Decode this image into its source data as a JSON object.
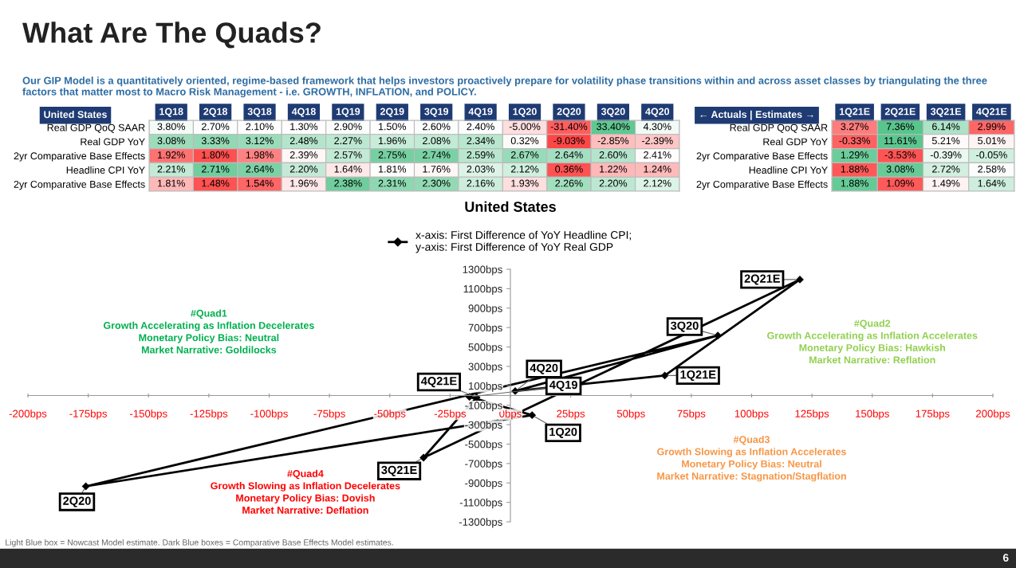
{
  "chart_data": [
    {
      "type": "heatmap",
      "title": "What Are The Quads?",
      "subtitle": "Our GIP Model is a quantitatively oriented, regime-based framework that helps investors proactively prepare for volatility phase transitions within and across asset classes by triangulating the three factors that matter most to Macro Risk Management - i.e. GROWTH, INFLATION, and POLICY.",
      "ylabel": "United States",
      "categories": [
        "1Q18",
        "2Q18",
        "3Q18",
        "4Q18",
        "1Q19",
        "2Q19",
        "3Q19",
        "4Q19",
        "1Q20",
        "2Q20",
        "3Q20",
        "4Q20"
      ],
      "y_categories": [
        "Real GDP QoQ SAAR",
        "Real GDP YoY",
        "2yr Comparative Base Effects",
        "Headline CPI YoY",
        "2yr Comparative Base Effects"
      ],
      "cells": [
        [
          3.8,
          2.7,
          2.1,
          1.3,
          2.9,
          1.5,
          2.6,
          2.4,
          -5.0,
          -31.4,
          33.4,
          4.3
        ],
        [
          3.08,
          3.33,
          3.12,
          2.48,
          2.27,
          1.96,
          2.08,
          2.34,
          0.32,
          -9.03,
          -2.85,
          -2.39
        ],
        [
          1.92,
          1.8,
          1.98,
          2.39,
          2.57,
          2.75,
          2.74,
          2.59,
          2.67,
          2.64,
          2.6,
          2.41
        ],
        [
          2.21,
          2.71,
          2.64,
          2.2,
          1.64,
          1.81,
          1.76,
          2.03,
          2.12,
          0.36,
          1.22,
          1.24
        ],
        [
          1.81,
          1.48,
          1.54,
          1.96,
          2.38,
          2.31,
          2.3,
          2.16,
          1.93,
          2.26,
          2.2,
          2.12
        ]
      ],
      "cell_labels": [
        [
          "3.80%",
          "2.70%",
          "2.10%",
          "1.30%",
          "2.90%",
          "1.50%",
          "2.60%",
          "2.40%",
          "-5.00%",
          "-31.40%",
          "33.40%",
          "4.30%"
        ],
        [
          "3.08%",
          "3.33%",
          "3.12%",
          "2.48%",
          "2.27%",
          "1.96%",
          "2.08%",
          "2.34%",
          "0.32%",
          "-9.03%",
          "-2.85%",
          "-2.39%"
        ],
        [
          "1.92%",
          "1.80%",
          "1.98%",
          "2.39%",
          "2.57%",
          "2.75%",
          "2.74%",
          "2.59%",
          "2.67%",
          "2.64%",
          "2.60%",
          "2.41%"
        ],
        [
          "2.21%",
          "2.71%",
          "2.64%",
          "2.20%",
          "1.64%",
          "1.81%",
          "1.76%",
          "2.03%",
          "2.12%",
          "0.36%",
          "1.22%",
          "1.24%"
        ],
        [
          "1.81%",
          "1.48%",
          "1.54%",
          "1.96%",
          "2.38%",
          "2.31%",
          "2.30%",
          "2.16%",
          "1.93%",
          "2.26%",
          "2.20%",
          "2.12%"
        ]
      ]
    },
    {
      "type": "heatmap",
      "ylabel": "← Actuals | Estimates →",
      "categories": [
        "1Q21E",
        "2Q21E",
        "3Q21E",
        "4Q21E"
      ],
      "y_categories": [
        "Real GDP QoQ SAAR",
        "Real GDP YoY",
        "2yr Comparative Base Effects",
        "Headline CPI YoY",
        "2yr Comparative Base Effects"
      ],
      "cells": [
        [
          3.27,
          7.36,
          6.14,
          2.99
        ],
        [
          -0.33,
          11.61,
          5.21,
          5.01
        ],
        [
          1.29,
          -3.53,
          -0.39,
          -0.05
        ],
        [
          1.88,
          3.08,
          2.72,
          2.58
        ],
        [
          1.88,
          1.09,
          1.49,
          1.64
        ]
      ],
      "cell_labels": [
        [
          "3.27%",
          "7.36%",
          "6.14%",
          "2.99%"
        ],
        [
          "-0.33%",
          "11.61%",
          "5.21%",
          "5.01%"
        ],
        [
          "1.29%",
          "-3.53%",
          "-0.39%",
          "-0.05%"
        ],
        [
          "1.88%",
          "3.08%",
          "2.72%",
          "2.58%"
        ],
        [
          "1.88%",
          "1.09%",
          "1.49%",
          "1.64%"
        ]
      ]
    },
    {
      "type": "line",
      "title": "United States",
      "marker": "diamond",
      "legend": "top",
      "grid": false,
      "xlim": [
        -200,
        200
      ],
      "ylim": [
        -1300,
        1300
      ],
      "xticks": [
        {
          "value": -200,
          "label": "-200bps"
        },
        {
          "value": -175,
          "label": "-175bps"
        },
        {
          "value": -150,
          "label": "-150bps"
        },
        {
          "value": -125,
          "label": "-125bps"
        },
        {
          "value": -100,
          "label": "-100bps"
        },
        {
          "value": -75,
          "label": "-75bps"
        },
        {
          "value": -50,
          "label": "-50bps"
        },
        {
          "value": -25,
          "label": "-25bps"
        },
        {
          "value": 0,
          "label": "0bps"
        },
        {
          "value": 25,
          "label": "25bps"
        },
        {
          "value": 50,
          "label": "50bps"
        },
        {
          "value": 75,
          "label": "75bps"
        },
        {
          "value": 100,
          "label": "100bps"
        },
        {
          "value": 125,
          "label": "125bps"
        },
        {
          "value": 150,
          "label": "150bps"
        },
        {
          "value": 175,
          "label": "175bps"
        },
        {
          "value": 200,
          "label": "200bps"
        }
      ],
      "yticks": [
        {
          "value": -1300,
          "label": "-1300bps"
        },
        {
          "value": -1100,
          "label": "-1100bps"
        },
        {
          "value": -900,
          "label": "-900bps"
        },
        {
          "value": -700,
          "label": "-700bps"
        },
        {
          "value": -500,
          "label": "-500bps"
        },
        {
          "value": -300,
          "label": "-300bps"
        },
        {
          "value": -100,
          "label": "-100bps"
        },
        {
          "value": 100,
          "label": "100bps"
        },
        {
          "value": 300,
          "label": "300bps"
        },
        {
          "value": 500,
          "label": "500bps"
        },
        {
          "value": 700,
          "label": "700bps"
        },
        {
          "value": 900,
          "label": "900bps"
        },
        {
          "value": 1100,
          "label": "1100bps"
        },
        {
          "value": 1300,
          "label": "1300bps"
        }
      ],
      "series": [
        {
          "name": "x-axis: First Difference of YoY Headline CPI;\ny-axis: First Difference of YoY Real GDP",
          "color": "#000000",
          "x": [
            -17,
            9,
            -176,
            86,
            2,
            64,
            120,
            -36,
            -14
          ],
          "values": [
            -14,
            -202,
            -935,
            618,
            46,
            206,
            1194,
            -640,
            -20
          ]
        }
      ],
      "annotations": [
        "#Quad1\nGrowth Accelerating as Inflation Decelerates\nMonetary Policy Bias: Neutral\nMarket Narrative: Goldilocks",
        "#Quad2\nGrowth Accelerating as Inflation Accelerates\nMonetary Policy Bias: Hawkish\nMarket Narrative: Reflation",
        "#Quad3\nGrowth Slowing as Inflation Accelerates\nMonetary Policy Bias: Neutral\nMarket Narrative: Stagnation/Stagflation",
        "#Quad4\nGrowth Slowing as Inflation Decelerates\nMonetary Policy Bias: Dovish\nMarket Narrative: Deflation",
        "Light Blue box = Nowcast Model estimate. Dark Blue boxes = Comparative Base Effects Model estimates.",
        "6",
        {
          "text": "4Q19",
          "x": -17,
          "y": -14
        },
        {
          "text": "1Q20",
          "x": 9,
          "y": -202
        },
        {
          "text": "2Q20",
          "x": -176,
          "y": -935
        },
        {
          "text": "3Q20",
          "x": 86,
          "y": 618
        },
        {
          "text": "4Q20",
          "x": 2,
          "y": 46
        },
        {
          "text": "1Q21E",
          "x": 64,
          "y": 206
        },
        {
          "text": "2Q21E",
          "x": 120,
          "y": 1194
        },
        {
          "text": "3Q21E",
          "x": -36,
          "y": -640
        },
        {
          "text": "4Q21E",
          "x": -14,
          "y": -20
        }
      ]
    }
  ]
}
